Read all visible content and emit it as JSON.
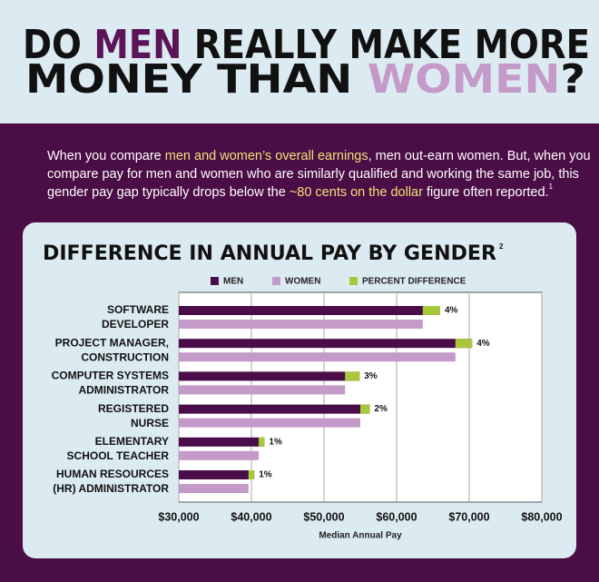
{
  "header": {
    "title_parts": [
      "DO ",
      "MEN",
      " REALLY MAKE MORE",
      "MONEY THAN ",
      "WOMEN",
      "?"
    ],
    "intro": [
      "When you compare ",
      "men and women’s overall earnings",
      ", men out-earn women.  But, when you",
      "compare pay for men and women who are similarly qualified and working the same job, this",
      "gender pay gap typically drops below the ",
      "~80 cents on the dollar",
      " figure often reported.",
      "1"
    ]
  },
  "chart_data": {
    "type": "bar",
    "orientation": "horizontal",
    "title": "DIFFERENCE IN ANNUAL PAY BY GENDER",
    "title_note": "2",
    "categories": [
      [
        "SOFTWARE",
        "DEVELOPER"
      ],
      [
        "PROJECT MANAGER,",
        "CONSTRUCTION"
      ],
      [
        "COMPUTER SYSTEMS",
        "ADMINISTRATOR"
      ],
      [
        "REGISTERED",
        "NURSE"
      ],
      [
        "ELEMENTARY",
        "SCHOOL TEACHER"
      ],
      [
        "HUMAN RESOURCES",
        "(HR) ADMINISTRATOR"
      ]
    ],
    "series": [
      {
        "name": "MEN",
        "color": "#4a0d4a",
        "values": [
          66000,
          70400,
          54900,
          56300,
          41800,
          40400
        ]
      },
      {
        "name": "WOMEN",
        "color": "#c49ac8",
        "values": [
          63600,
          68100,
          52900,
          55000,
          41000,
          39600
        ]
      },
      {
        "name": "PERCENT DIFFERENCE",
        "color": "#a8c83c",
        "values": [
          4,
          4,
          3,
          2,
          1,
          1
        ],
        "value_labels": [
          "4%",
          "4%",
          "3%",
          "2%",
          "1%",
          "1%"
        ]
      }
    ],
    "xlim": [
      30000,
      80000
    ],
    "xticks": [
      {
        "value": 30000,
        "label": "$30,000"
      },
      {
        "value": 40000,
        "label": "$40,000"
      },
      {
        "value": 50000,
        "label": "$50,000"
      },
      {
        "value": 60000,
        "label": "$60,000"
      },
      {
        "value": 70000,
        "label": "$70,000"
      },
      {
        "value": 80000,
        "label": "$80,000"
      }
    ],
    "xlabel": "Median Annual Pay",
    "grid": true,
    "legend": "top"
  }
}
